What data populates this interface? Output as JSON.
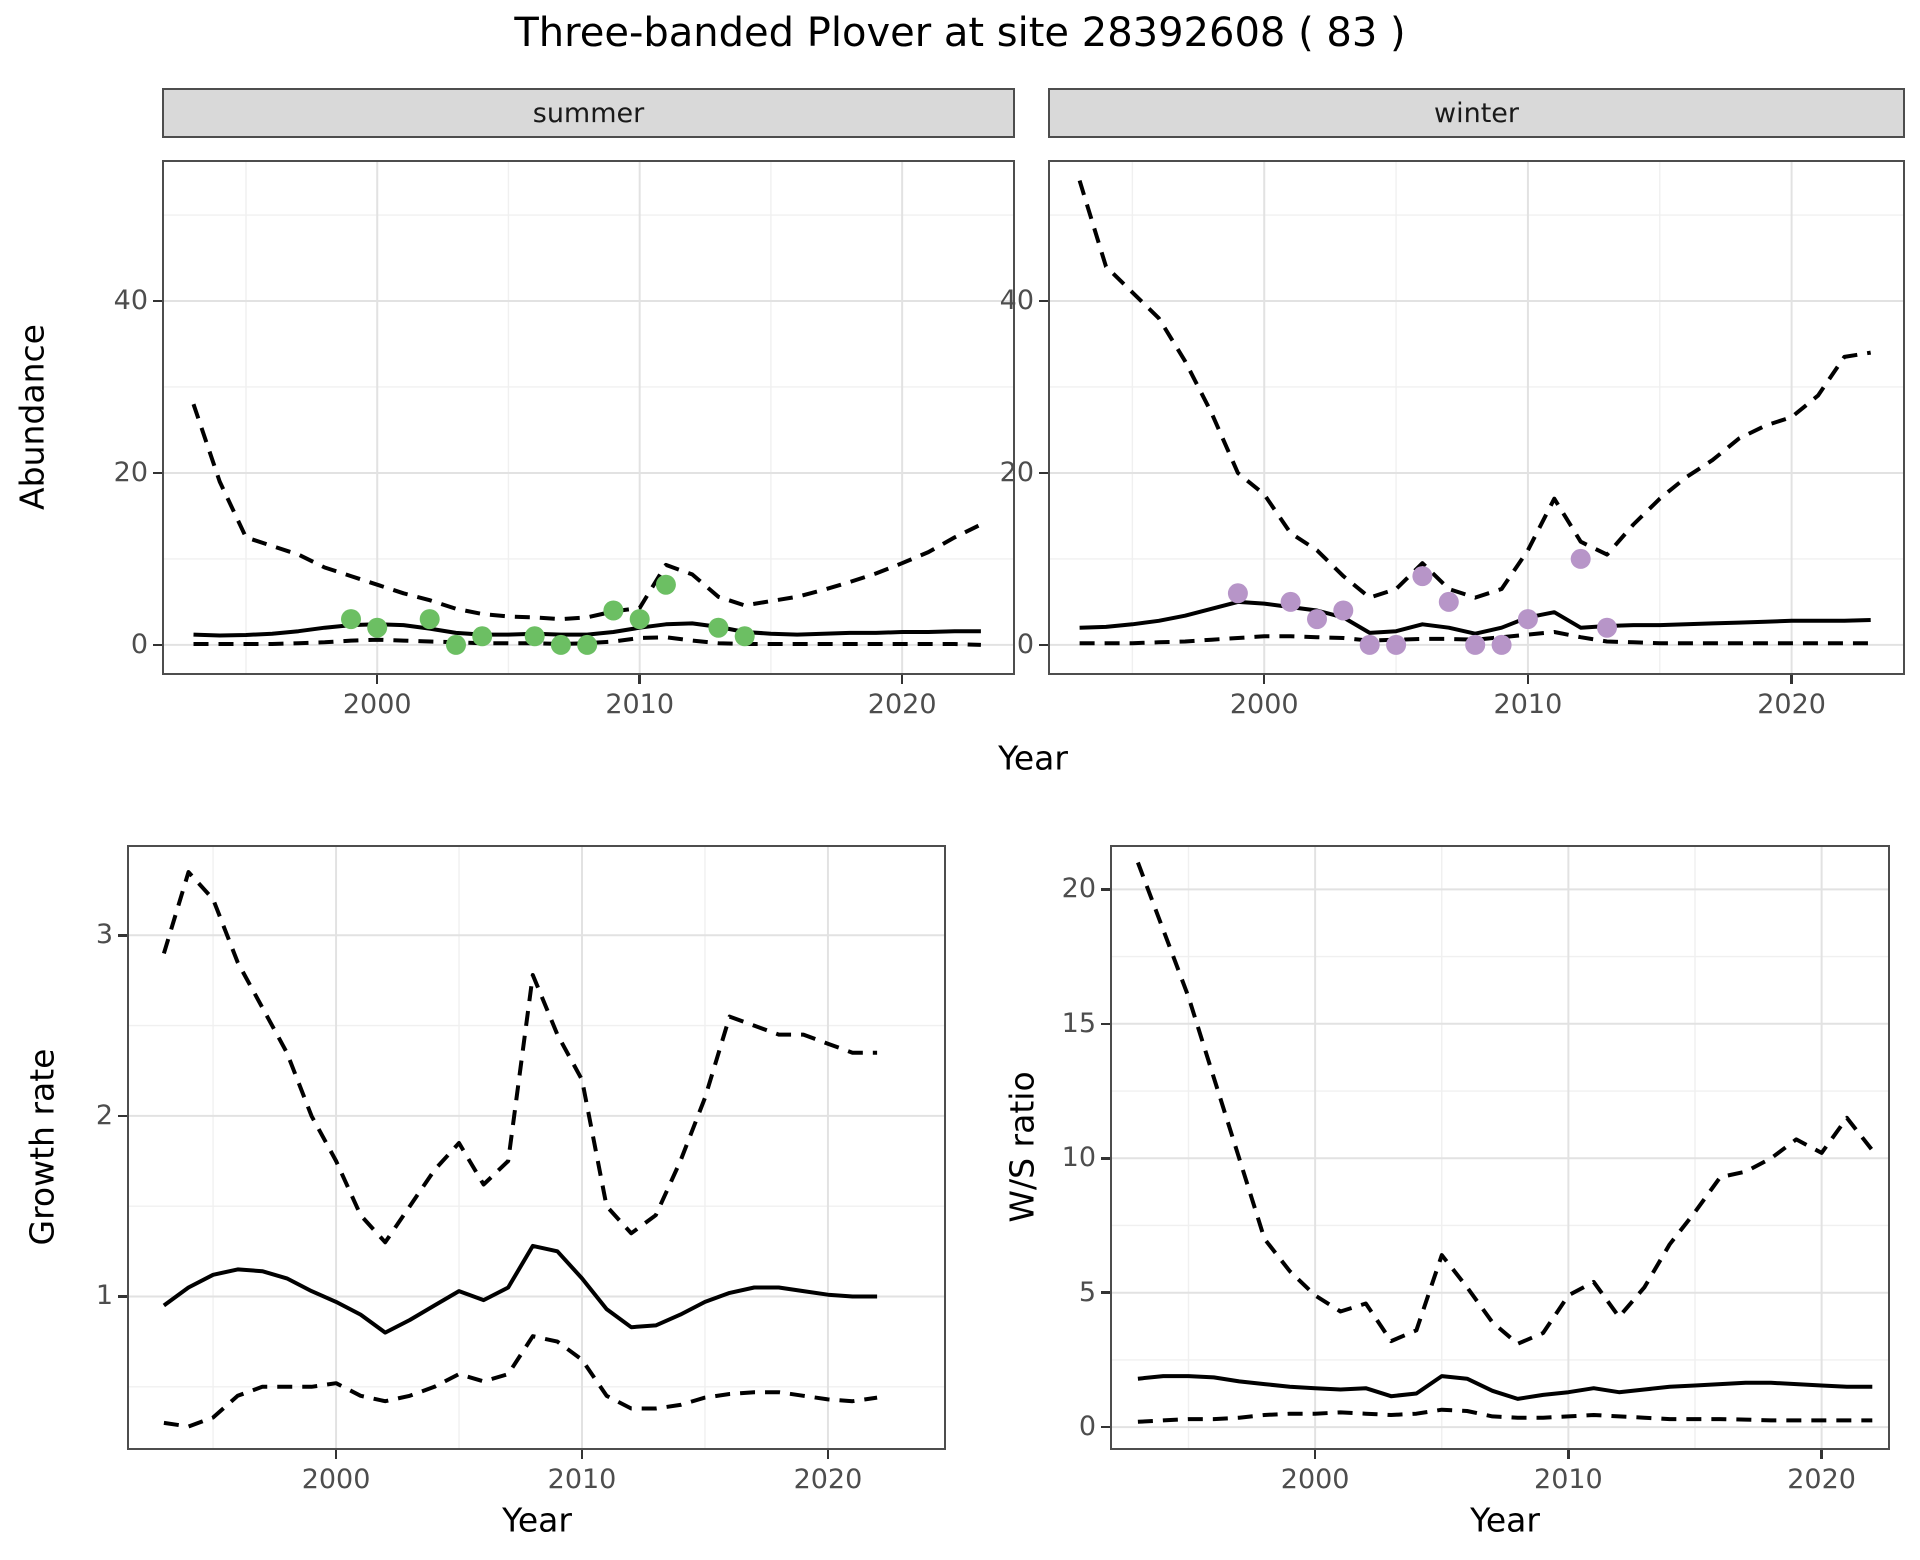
{
  "title": "Three-banded Plover at site 28392608 ( 83 )",
  "colors": {
    "summer_point": "#6cbf63",
    "winter_point": "#b795c8",
    "line": "#000000",
    "grid_major": "#e2e2e2",
    "grid_minor": "#f0f0f0",
    "strip_bg": "#d9d9d9",
    "panel_border": "#4d4d4d",
    "tick_text": "#4d4d4d"
  },
  "chart_data": [
    {
      "id": "summer",
      "type": "line",
      "facet_label": "summer",
      "xlabel": "Year",
      "ylabel": "Abundance",
      "xlim": [
        1991.8,
        2024.3
      ],
      "ylim": [
        -3.5,
        56.4
      ],
      "x_ticks": [
        2000,
        2010,
        2020
      ],
      "x_minor": [
        1995,
        2005,
        2015
      ],
      "y_ticks": [
        0,
        20,
        40
      ],
      "y_minor": [
        10,
        30,
        50
      ],
      "legend": "none",
      "grid": true,
      "series": [
        {
          "name": "upper-ci",
          "dashed": true,
          "x": [
            1993,
            1994,
            1995,
            1996,
            1997,
            1998,
            1999,
            2000,
            2001,
            2002,
            2003,
            2004,
            2005,
            2006,
            2007,
            2008,
            2009,
            2010,
            2011,
            2012,
            2013,
            2014,
            2015,
            2016,
            2017,
            2018,
            2019,
            2020,
            2021,
            2022,
            2023
          ],
          "y": [
            28,
            19,
            12.5,
            11.5,
            10.5,
            9,
            8,
            7,
            6,
            5.2,
            4.2,
            3.6,
            3.3,
            3.2,
            3.0,
            3.2,
            3.9,
            4.3,
            9.3,
            8.2,
            5.6,
            4.6,
            5.1,
            5.6,
            6.4,
            7.3,
            8.3,
            9.5,
            10.8,
            12.5,
            14
          ]
        },
        {
          "name": "median",
          "dashed": false,
          "x": [
            1993,
            1994,
            1995,
            1996,
            1997,
            1998,
            1999,
            2000,
            2001,
            2002,
            2003,
            2004,
            2005,
            2006,
            2007,
            2008,
            2009,
            2010,
            2011,
            2012,
            2013,
            2014,
            2015,
            2016,
            2017,
            2018,
            2019,
            2020,
            2021,
            2022,
            2023
          ],
          "y": [
            1.2,
            1.1,
            1.15,
            1.3,
            1.6,
            2.0,
            2.3,
            2.4,
            2.3,
            1.9,
            1.4,
            1.2,
            1.2,
            1.3,
            1.2,
            1.2,
            1.5,
            2.0,
            2.4,
            2.5,
            2.1,
            1.5,
            1.3,
            1.2,
            1.3,
            1.4,
            1.4,
            1.5,
            1.5,
            1.6,
            1.6
          ]
        },
        {
          "name": "lower-ci",
          "dashed": true,
          "x": [
            1993,
            1994,
            1995,
            1996,
            1997,
            1998,
            1999,
            2000,
            2001,
            2002,
            2003,
            2004,
            2005,
            2006,
            2007,
            2008,
            2009,
            2010,
            2011,
            2012,
            2013,
            2014,
            2015,
            2016,
            2017,
            2018,
            2019,
            2020,
            2021,
            2022,
            2023
          ],
          "y": [
            0.1,
            0.1,
            0.1,
            0.1,
            0.2,
            0.3,
            0.5,
            0.6,
            0.5,
            0.4,
            0.3,
            0.2,
            0.2,
            0.2,
            0.1,
            0.2,
            0.4,
            0.8,
            0.9,
            0.5,
            0.2,
            0.1,
            0.1,
            0.1,
            0.1,
            0.1,
            0.1,
            0.1,
            0.1,
            0.1,
            0.0
          ]
        }
      ],
      "points": {
        "name": "summer-observations",
        "color_key": "summer_point",
        "data": [
          [
            1999,
            3
          ],
          [
            2000,
            2
          ],
          [
            2002,
            3
          ],
          [
            2003,
            0
          ],
          [
            2004,
            1
          ],
          [
            2006,
            1
          ],
          [
            2007,
            0
          ],
          [
            2008,
            0
          ],
          [
            2009,
            4
          ],
          [
            2010,
            3
          ],
          [
            2011,
            7
          ],
          [
            2013,
            2
          ],
          [
            2014,
            1
          ]
        ]
      }
    },
    {
      "id": "winter",
      "type": "line",
      "facet_label": "winter",
      "xlabel": "Year",
      "ylabel": "Abundance",
      "xlim": [
        1991.8,
        2024.3
      ],
      "ylim": [
        -3.5,
        56.4
      ],
      "x_ticks": [
        2000,
        2010,
        2020
      ],
      "x_minor": [
        1995,
        2005,
        2015
      ],
      "y_ticks": [
        0,
        20,
        40
      ],
      "y_minor": [
        10,
        30,
        50
      ],
      "legend": "none",
      "grid": true,
      "series": [
        {
          "name": "upper-ci",
          "dashed": true,
          "x": [
            1993,
            1994,
            1995,
            1996,
            1997,
            1998,
            1999,
            2000,
            2001,
            2002,
            2003,
            2004,
            2005,
            2006,
            2007,
            2008,
            2009,
            2010,
            2011,
            2012,
            2013,
            2014,
            2015,
            2016,
            2017,
            2018,
            2019,
            2020,
            2021,
            2022,
            2023
          ],
          "y": [
            54,
            44,
            41,
            38,
            33,
            27,
            20,
            17.5,
            13,
            11,
            8,
            5.5,
            6.5,
            9.5,
            6.5,
            5.5,
            6.5,
            11,
            17,
            12,
            10.5,
            14,
            17,
            19.5,
            21.5,
            24,
            25.5,
            26.5,
            29,
            33.5,
            34
          ]
        },
        {
          "name": "median",
          "dashed": false,
          "x": [
            1993,
            1994,
            1995,
            1996,
            1997,
            1998,
            1999,
            2000,
            2001,
            2002,
            2003,
            2004,
            2005,
            2006,
            2007,
            2008,
            2009,
            2010,
            2011,
            2012,
            2013,
            2014,
            2015,
            2016,
            2017,
            2018,
            2019,
            2020,
            2021,
            2022,
            2023
          ],
          "y": [
            2,
            2.1,
            2.4,
            2.8,
            3.4,
            4.2,
            5,
            4.8,
            4.4,
            4,
            3.2,
            1.4,
            1.6,
            2.4,
            2,
            1.3,
            2,
            3.2,
            3.8,
            2,
            2.2,
            2.3,
            2.3,
            2.4,
            2.5,
            2.6,
            2.7,
            2.8,
            2.8,
            2.8,
            2.9
          ]
        },
        {
          "name": "lower-ci",
          "dashed": true,
          "x": [
            1993,
            1994,
            1995,
            1996,
            1997,
            1998,
            1999,
            2000,
            2001,
            2002,
            2003,
            2004,
            2005,
            2006,
            2007,
            2008,
            2009,
            2010,
            2011,
            2012,
            2013,
            2014,
            2015,
            2016,
            2017,
            2018,
            2019,
            2020,
            2021,
            2022,
            2023
          ],
          "y": [
            0.2,
            0.2,
            0.2,
            0.3,
            0.4,
            0.6,
            0.8,
            1,
            1,
            0.9,
            0.8,
            0.5,
            0.6,
            0.7,
            0.7,
            0.6,
            0.9,
            1.2,
            1.5,
            0.9,
            0.4,
            0.3,
            0.2,
            0.2,
            0.2,
            0.2,
            0.2,
            0.2,
            0.2,
            0.2,
            0.2
          ]
        }
      ],
      "points": {
        "name": "winter-observations",
        "color_key": "winter_point",
        "data": [
          [
            1999,
            6
          ],
          [
            2001,
            5
          ],
          [
            2002,
            3
          ],
          [
            2003,
            4
          ],
          [
            2004,
            0
          ],
          [
            2005,
            0
          ],
          [
            2006,
            8
          ],
          [
            2007,
            5
          ],
          [
            2008,
            0
          ],
          [
            2009,
            0
          ],
          [
            2010,
            3
          ],
          [
            2012,
            10
          ],
          [
            2013,
            2
          ]
        ]
      }
    },
    {
      "id": "growth",
      "type": "line",
      "facet_label": "",
      "xlabel": "Year",
      "ylabel": "Growth rate",
      "xlim": [
        1991.5,
        2024.8
      ],
      "ylim": [
        0.15,
        3.5
      ],
      "x_ticks": [
        2000,
        2010,
        2020
      ],
      "x_minor": [
        1995,
        2005,
        2015
      ],
      "y_ticks": [
        1,
        2,
        3
      ],
      "y_minor": [
        0.5,
        1.5,
        2.5
      ],
      "legend": "none",
      "grid": true,
      "series": [
        {
          "name": "upper-ci",
          "dashed": true,
          "x": [
            1993,
            1994,
            1995,
            1996,
            1997,
            1998,
            1999,
            2000,
            2001,
            2002,
            2003,
            2004,
            2005,
            2006,
            2007,
            2008,
            2009,
            2010,
            2011,
            2012,
            2013,
            2014,
            2015,
            2016,
            2017,
            2018,
            2019,
            2020,
            2021,
            2022
          ],
          "y": [
            2.9,
            3.35,
            3.2,
            2.85,
            2.6,
            2.35,
            2.0,
            1.75,
            1.45,
            1.3,
            1.5,
            1.7,
            1.85,
            1.62,
            1.75,
            2.78,
            2.45,
            2.2,
            1.5,
            1.35,
            1.45,
            1.75,
            2.1,
            2.55,
            2.5,
            2.45,
            2.45,
            2.4,
            2.35,
            2.35
          ]
        },
        {
          "name": "median",
          "dashed": false,
          "x": [
            1993,
            1994,
            1995,
            1996,
            1997,
            1998,
            1999,
            2000,
            2001,
            2002,
            2003,
            2004,
            2005,
            2006,
            2007,
            2008,
            2009,
            2010,
            2011,
            2012,
            2013,
            2014,
            2015,
            2016,
            2017,
            2018,
            2019,
            2020,
            2021,
            2022
          ],
          "y": [
            0.95,
            1.05,
            1.12,
            1.15,
            1.14,
            1.1,
            1.03,
            0.97,
            0.9,
            0.8,
            0.87,
            0.95,
            1.03,
            0.98,
            1.05,
            1.28,
            1.25,
            1.1,
            0.93,
            0.83,
            0.84,
            0.9,
            0.97,
            1.02,
            1.05,
            1.05,
            1.03,
            1.01,
            1.0,
            1.0
          ]
        },
        {
          "name": "lower-ci",
          "dashed": true,
          "x": [
            1993,
            1994,
            1995,
            1996,
            1997,
            1998,
            1999,
            2000,
            2001,
            2002,
            2003,
            2004,
            2005,
            2006,
            2007,
            2008,
            2009,
            2010,
            2011,
            2012,
            2013,
            2014,
            2015,
            2016,
            2017,
            2018,
            2019,
            2020,
            2021,
            2022
          ],
          "y": [
            0.3,
            0.28,
            0.33,
            0.45,
            0.5,
            0.5,
            0.5,
            0.52,
            0.45,
            0.42,
            0.45,
            0.5,
            0.57,
            0.53,
            0.57,
            0.78,
            0.75,
            0.65,
            0.45,
            0.38,
            0.38,
            0.4,
            0.44,
            0.46,
            0.47,
            0.47,
            0.45,
            0.43,
            0.42,
            0.44
          ]
        }
      ],
      "points": null
    },
    {
      "id": "ws",
      "type": "line",
      "facet_label": "",
      "xlabel": "Year",
      "ylabel": "W/S ratio",
      "xlim": [
        1991.9,
        2022.7
      ],
      "ylim": [
        -0.85,
        21.65
      ],
      "x_ticks": [
        2000,
        2010,
        2020
      ],
      "x_minor": [
        1995,
        2005,
        2015
      ],
      "y_ticks": [
        0,
        5,
        10,
        15,
        20
      ],
      "y_minor": [
        2.5,
        7.5,
        12.5,
        17.5
      ],
      "legend": "none",
      "grid": true,
      "series": [
        {
          "name": "upper-ci",
          "dashed": true,
          "x": [
            1993,
            1994,
            1995,
            1996,
            1997,
            1998,
            1999,
            2000,
            2001,
            2002,
            2003,
            2004,
            2005,
            2006,
            2007,
            2008,
            2009,
            2010,
            2011,
            2012,
            2013,
            2014,
            2015,
            2016,
            2017,
            2018,
            2019,
            2020,
            2021,
            2022
          ],
          "y": [
            21,
            18.5,
            16,
            13,
            10,
            7,
            5.8,
            4.9,
            4.3,
            4.6,
            3.2,
            3.6,
            6.4,
            5.2,
            3.9,
            3.1,
            3.5,
            4.9,
            5.4,
            4.1,
            5.2,
            6.8,
            8,
            9.3,
            9.5,
            10,
            10.7,
            10.2,
            11.5,
            10.3
          ]
        },
        {
          "name": "median",
          "dashed": false,
          "x": [
            1993,
            1994,
            1995,
            1996,
            1997,
            1998,
            1999,
            2000,
            2001,
            2002,
            2003,
            2004,
            2005,
            2006,
            2007,
            2008,
            2009,
            2010,
            2011,
            2012,
            2013,
            2014,
            2015,
            2016,
            2017,
            2018,
            2019,
            2020,
            2021,
            2022
          ],
          "y": [
            1.8,
            1.9,
            1.9,
            1.85,
            1.7,
            1.6,
            1.5,
            1.45,
            1.4,
            1.45,
            1.15,
            1.25,
            1.9,
            1.8,
            1.35,
            1.05,
            1.2,
            1.3,
            1.45,
            1.3,
            1.4,
            1.5,
            1.55,
            1.6,
            1.65,
            1.65,
            1.6,
            1.55,
            1.5,
            1.5
          ]
        },
        {
          "name": "lower-ci",
          "dashed": true,
          "x": [
            1993,
            1994,
            1995,
            1996,
            1997,
            1998,
            1999,
            2000,
            2001,
            2002,
            2003,
            2004,
            2005,
            2006,
            2007,
            2008,
            2009,
            2010,
            2011,
            2012,
            2013,
            2014,
            2015,
            2016,
            2017,
            2018,
            2019,
            2020,
            2021,
            2022
          ],
          "y": [
            0.2,
            0.25,
            0.3,
            0.3,
            0.35,
            0.45,
            0.5,
            0.5,
            0.55,
            0.5,
            0.45,
            0.5,
            0.65,
            0.6,
            0.4,
            0.35,
            0.35,
            0.4,
            0.45,
            0.4,
            0.35,
            0.3,
            0.3,
            0.3,
            0.28,
            0.25,
            0.25,
            0.25,
            0.25,
            0.25
          ]
        }
      ],
      "points": null
    }
  ]
}
